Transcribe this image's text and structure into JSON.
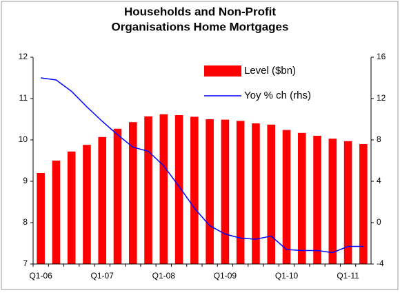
{
  "chart_data": {
    "type": "bar_line",
    "title": [
      "Households and Non-Profit",
      "Organisations Home Mortgages"
    ],
    "categories": [
      "Q1-06",
      null,
      null,
      null,
      "Q1-07",
      null,
      null,
      null,
      "Q1-08",
      null,
      null,
      null,
      "Q1-09",
      null,
      null,
      null,
      "Q1-10",
      null,
      null,
      null,
      "Q1-11",
      null
    ],
    "series": [
      {
        "name": "Level ($bn)",
        "type": "bar",
        "color": "#ff0000",
        "axis": "y",
        "values": [
          9.2,
          9.5,
          9.72,
          9.88,
          10.07,
          10.27,
          10.43,
          10.57,
          10.62,
          10.6,
          10.56,
          10.5,
          10.49,
          10.46,
          10.4,
          10.37,
          10.24,
          10.17,
          10.1,
          10.03,
          9.97,
          9.9
        ]
      },
      {
        "name": "Yoy % ch (rhs)",
        "type": "line",
        "color": "#0000ff",
        "axis": "y2",
        "values": [
          14.0,
          13.8,
          12.7,
          11.2,
          9.8,
          8.5,
          7.3,
          6.9,
          5.5,
          3.5,
          1.4,
          -0.3,
          -1.1,
          -1.5,
          -1.6,
          -1.3,
          -2.6,
          -2.7,
          -2.7,
          -2.9,
          -2.3,
          -2.3
        ]
      }
    ],
    "ylim": [
      7,
      12
    ],
    "yticks": [
      7,
      8,
      9,
      10,
      11,
      12
    ],
    "y2lim": [
      -4,
      16
    ],
    "y2ticks": [
      -4,
      0,
      4,
      8,
      12,
      16
    ],
    "grid": false,
    "legend": "top-right"
  }
}
